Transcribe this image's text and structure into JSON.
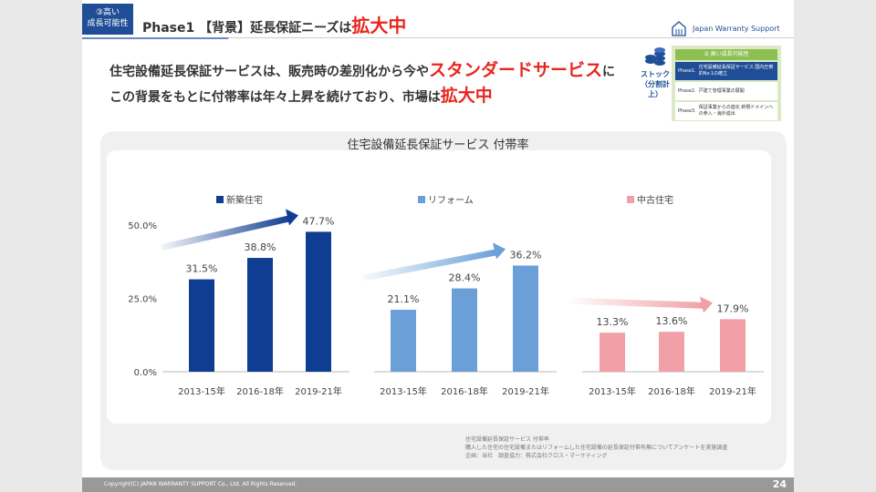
{
  "header": {
    "badge_line1": "③高い",
    "badge_line2": "成長可能性",
    "title_main": "Phase1 【背景】延長保証ニーズは",
    "title_emph": "拡大中",
    "brand": "Japan Warranty Support"
  },
  "lead": {
    "line1_a": "住宅設備延長保証サービスは、販売時の差別化から今や",
    "line1_emph": "スタンダードサービス",
    "line1_b": "に",
    "line2_a": "この背景をもとに付帯率は年々上昇を続けており、市場は",
    "line2_emph": "拡大中"
  },
  "stock": {
    "label1": "ストック",
    "label2": "（分割計上）"
  },
  "phases": {
    "header": "③ 高い成長可能性",
    "rows": [
      {
        "phase": "Phase1.",
        "text": "住宅設備延長保証サービス 国内圧倒的No.1の確立"
      },
      {
        "phase": "Phase2.",
        "text": "戸建て管理事業の展開"
      },
      {
        "phase": "Phase3.",
        "text": "保証事業からの進化 新規ドメインへの参入・海外進出"
      }
    ]
  },
  "chart_data": {
    "type": "bar",
    "title": "住宅設備延長保証サービス 付帯率",
    "categories": [
      "2013-15年",
      "2016-18年",
      "2019-21年"
    ],
    "yticks": [
      "0.0%",
      "25.0%",
      "50.0%"
    ],
    "ylim": [
      0,
      50
    ],
    "series": [
      {
        "name": "新築住宅",
        "color": "#0e3d91",
        "values": [
          31.5,
          38.8,
          47.7
        ],
        "labels": [
          "31.5%",
          "38.8%",
          "47.7%"
        ]
      },
      {
        "name": "リフォーム",
        "color": "#6a9fd8",
        "values": [
          21.1,
          28.4,
          36.2
        ],
        "labels": [
          "21.1%",
          "28.4%",
          "36.2%"
        ]
      },
      {
        "name": "中古住宅",
        "color": "#f0a0a6",
        "values": [
          13.3,
          13.6,
          17.9
        ],
        "labels": [
          "13.3%",
          "13.6%",
          "17.9%"
        ]
      }
    ]
  },
  "note": {
    "l1": "住宅設備延長保証サービス 付帯率",
    "l2": "購入した住宅の住宅設備またはリフォームした住宅設備の延長保証付帯有無についてアンケートを実施調査",
    "l3": "企画：当社　調査協力：株式会社クロス・マーケティング"
  },
  "footer": {
    "copyright": "Copyright(C) JAPAN WARRANTY SUPPORT Co., Ltd. All Rights Reserved.",
    "page": "24"
  }
}
